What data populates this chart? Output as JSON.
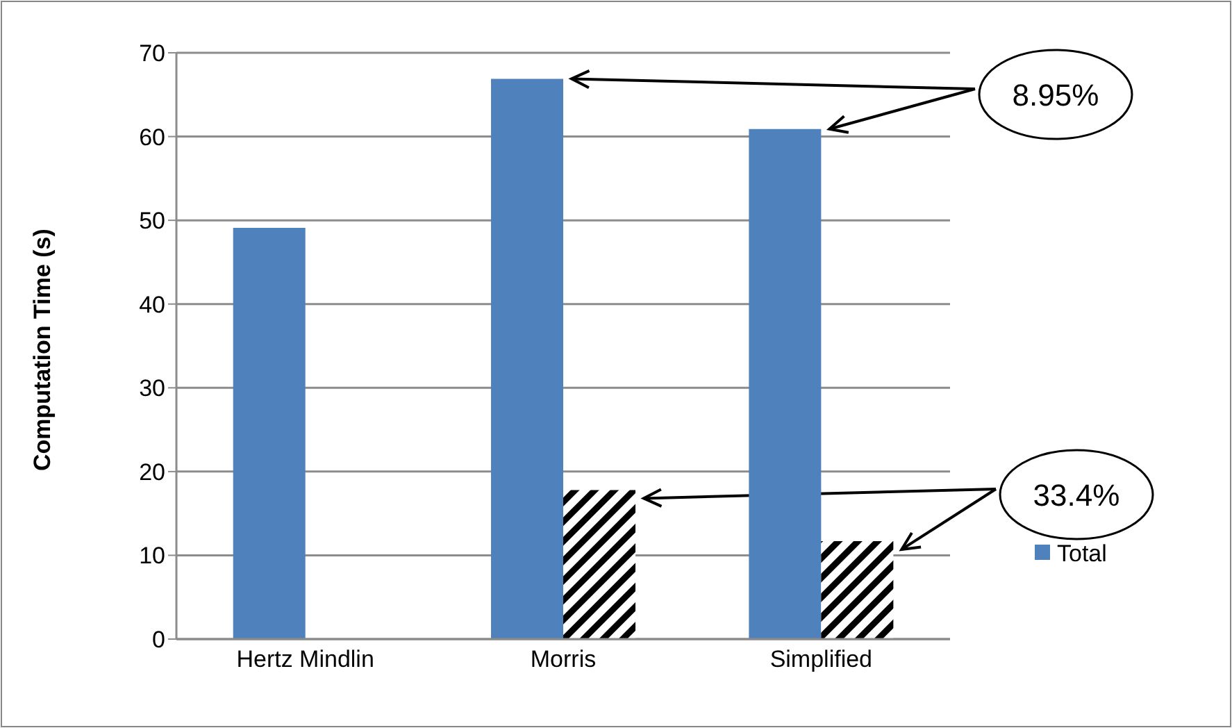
{
  "chart_data": {
    "type": "bar",
    "ylabel": "Computation Time (s)",
    "categories": [
      "Hertz Mindlin",
      "Morris",
      "Simplified"
    ],
    "series": [
      {
        "name": "Total",
        "color": "#4f81bd",
        "values": [
          49.1,
          66.9,
          60.9
        ]
      },
      {
        "color": "#000000",
        "values": [
          null,
          17.8,
          11.7
        ]
      }
    ],
    "ylim": [
      0,
      70
    ],
    "yticks": [
      0,
      10,
      20,
      30,
      40,
      50,
      60,
      70
    ],
    "grid": "y",
    "legend": "right",
    "annotations": [
      "8.95%",
      "33.4%"
    ]
  }
}
